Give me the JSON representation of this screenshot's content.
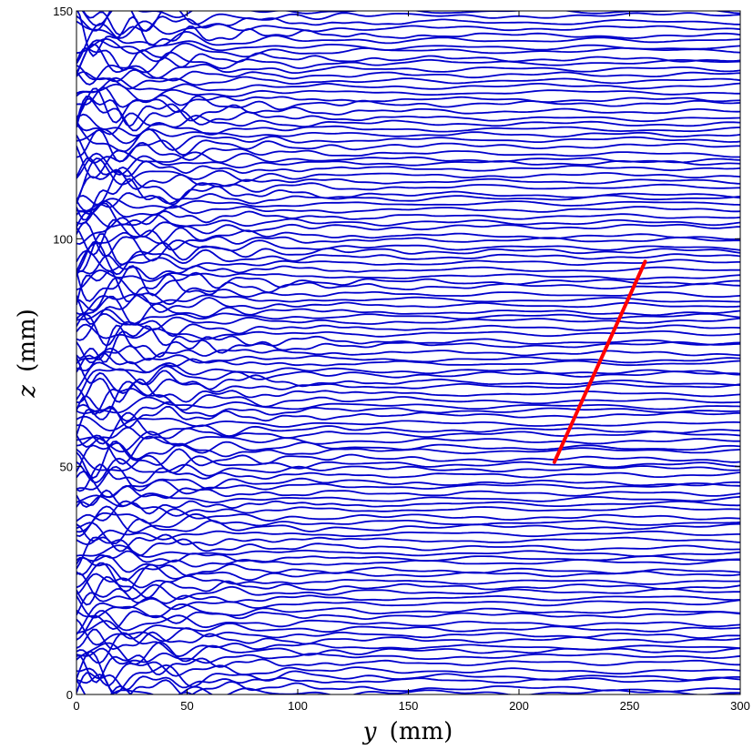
{
  "chart_data": {
    "type": "line",
    "title": "",
    "xlabel": {
      "var": "y",
      "unit": "(mm)"
    },
    "ylabel": {
      "var": "z",
      "unit": "(mm)"
    },
    "xlim": [
      0,
      300
    ],
    "ylim": [
      0,
      150
    ],
    "x_ticks": [
      0,
      50,
      100,
      150,
      200,
      250,
      300
    ],
    "y_ticks": [
      0,
      50,
      100,
      150
    ],
    "grid": false,
    "legend": "none",
    "series": [
      {
        "kind": "profile-family",
        "color": "#0000cc",
        "count": 118,
        "z_start": -1,
        "z_end": 150,
        "x_step": 1.5,
        "description_values": {
          "baseline_spacing_mm": 1.29,
          "edge_disturbance_decay_mm": 45,
          "far_field_amplitude_mm": 0.35
        }
      },
      {
        "kind": "segment",
        "color": "#ff0000",
        "x": [
          216,
          257
        ],
        "y": [
          51,
          95
        ]
      }
    ]
  }
}
